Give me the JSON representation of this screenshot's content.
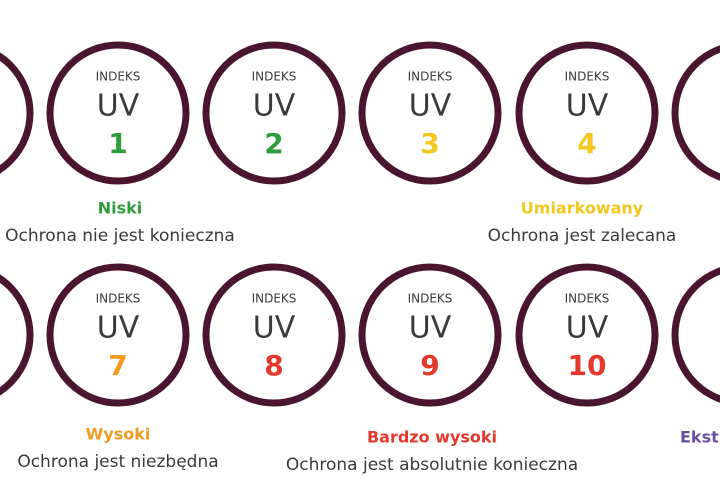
{
  "rows": [
    {
      "circles": [
        {
          "header": "INDEKS",
          "unit": "UV",
          "number": 1,
          "color": "#2e9e3c"
        },
        {
          "header": "INDEKS",
          "unit": "UV",
          "number": 2,
          "color": "#2e9e3c"
        },
        {
          "header": "INDEKS",
          "unit": "UV",
          "number": 3,
          "color": "#f2c81e"
        },
        {
          "header": "INDEKS",
          "unit": "UV",
          "number": 4,
          "color": "#f2c81e"
        }
      ],
      "levels": [
        {
          "name": "Niski",
          "description": "Ochrona nie jest konieczna",
          "color": "#2e9e3c"
        },
        {
          "name": "Umiarkowany",
          "description": "Ochrona jest zalecana",
          "color": "#f2c81e"
        }
      ]
    },
    {
      "circles": [
        {
          "header": "INDEKS",
          "unit": "UV",
          "number": 7,
          "color": "#f39a22"
        },
        {
          "header": "INDEKS",
          "unit": "UV",
          "number": 8,
          "color": "#e2392b"
        },
        {
          "header": "INDEKS",
          "unit": "UV",
          "number": 9,
          "color": "#e2392b"
        },
        {
          "header": "INDEKS",
          "unit": "UV",
          "number": 10,
          "color": "#e2392b"
        }
      ],
      "levels": [
        {
          "name": "Wysoki",
          "description": "Ochrona jest niezbędna",
          "color": "#f39a22"
        },
        {
          "name": "Bardzo wysoki",
          "description": "Ochrona jest absolutnie konieczna",
          "color": "#e2392b"
        },
        {
          "name": "Ekst",
          "color": "#6a4fa3"
        }
      ]
    }
  ]
}
